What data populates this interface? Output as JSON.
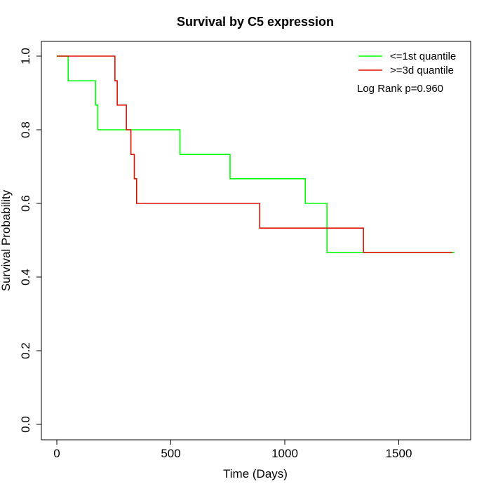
{
  "chart_data": {
    "type": "line",
    "step": true,
    "title": "Survival by C5 expression",
    "xlabel": "Time (Days)",
    "ylabel": "Survival Probability",
    "xlim": [
      0,
      1750
    ],
    "ylim": [
      0,
      1.0
    ],
    "xticks": [
      0,
      500,
      1000,
      1500
    ],
    "xtick_labels": [
      "0",
      "500",
      "1000",
      "1500"
    ],
    "yticks": [
      0,
      0.2,
      0.4,
      0.6,
      0.8,
      1.0
    ],
    "ytick_labels": [
      "0.0",
      "0.2",
      "0.4",
      "0.6",
      "0.8",
      "1.0"
    ],
    "grid": false,
    "legend_position": "top-right",
    "annotation": "Log Rank p=0.960",
    "series": [
      {
        "name": "<=1st quantile",
        "color": "#00ff00",
        "points": [
          [
            0,
            1.0
          ],
          [
            50,
            0.933
          ],
          [
            170,
            0.867
          ],
          [
            180,
            0.8
          ],
          [
            540,
            0.733
          ],
          [
            760,
            0.667
          ],
          [
            1090,
            0.6
          ],
          [
            1185,
            0.467
          ],
          [
            1745,
            0.467
          ]
        ]
      },
      {
        "name": ">=3d quantile",
        "color": "#dd1100",
        "points": [
          [
            0,
            1.0
          ],
          [
            255,
            0.933
          ],
          [
            265,
            0.867
          ],
          [
            305,
            0.8
          ],
          [
            325,
            0.733
          ],
          [
            340,
            0.667
          ],
          [
            350,
            0.6
          ],
          [
            890,
            0.533
          ],
          [
            1345,
            0.467
          ],
          [
            1735,
            0.467
          ]
        ]
      }
    ]
  }
}
